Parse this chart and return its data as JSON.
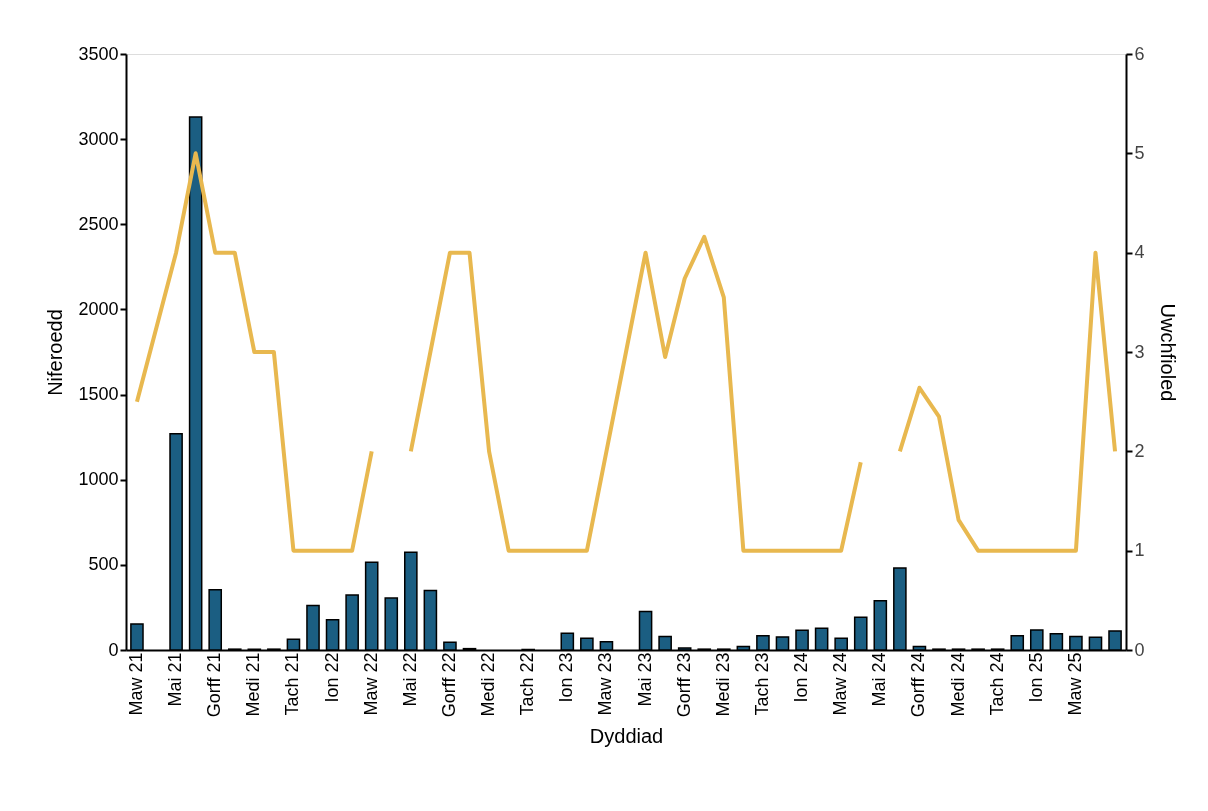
{
  "chart_data": {
    "type": "bar",
    "xlabel": "Dyddiad",
    "ylabel": "Niferoedd",
    "y2label": "Uwchfioled",
    "categories": [
      "Maw 21",
      null,
      "Mai 21",
      null,
      "Gorff 21",
      null,
      "Medi 21",
      null,
      "Tach 21",
      null,
      "Ion 22",
      null,
      "Maw 22",
      null,
      "Mai 22",
      null,
      "Gorff 22",
      null,
      "Medi 22",
      null,
      "Tach 22",
      null,
      "Ion 23",
      null,
      "Maw 23",
      null,
      "Mai 23",
      null,
      "Gorff 23",
      null,
      "Medi 23",
      null,
      "Tach 23",
      null,
      "Ion 24",
      null,
      "Maw 24",
      null,
      "Mai 24",
      null,
      "Gorff 24",
      null,
      "Medi 24",
      null,
      "Tach 24",
      null,
      "Ion 25",
      null,
      "Maw 25",
      null,
      null
    ],
    "series": [
      {
        "color": "#1b5e82",
        "values": [
          153,
          null,
          1270,
          3130,
          354,
          5,
          5,
          5,
          63,
          262,
          177,
          323,
          515,
          305,
          574,
          350,
          45,
          8,
          null,
          null,
          3,
          null,
          98,
          69,
          49,
          null,
          226,
          79,
          12,
          5,
          5,
          20,
          83,
          77,
          116,
          128,
          69,
          193,
          289,
          482,
          20,
          5,
          5,
          5,
          5,
          83,
          118,
          96,
          79,
          75,
          112
        ]
      },
      {
        "type": "line",
        "axis": "y2",
        "color": "#e8b84f",
        "values": [
          2.5,
          3.25,
          4,
          5,
          4,
          4,
          3,
          3,
          1,
          1,
          1,
          1,
          2,
          null,
          2,
          3,
          4,
          4,
          2,
          1,
          1,
          1,
          1,
          1,
          2,
          3,
          4,
          2.95,
          3.74,
          4.16,
          3.55,
          1,
          1,
          1,
          1,
          1,
          1,
          1.89,
          null,
          2,
          2.64,
          2.35,
          1.31,
          1,
          1,
          1,
          1,
          1,
          1,
          4,
          2
        ]
      }
    ],
    "ylim": [
      0,
      3500
    ],
    "yticks": [
      0,
      500,
      1000,
      1500,
      2000,
      2500,
      3000,
      3500
    ],
    "y2lim": [
      0,
      6
    ],
    "y2ticks": [
      0,
      1,
      2,
      3,
      4,
      5,
      6
    ],
    "grid": false
  }
}
